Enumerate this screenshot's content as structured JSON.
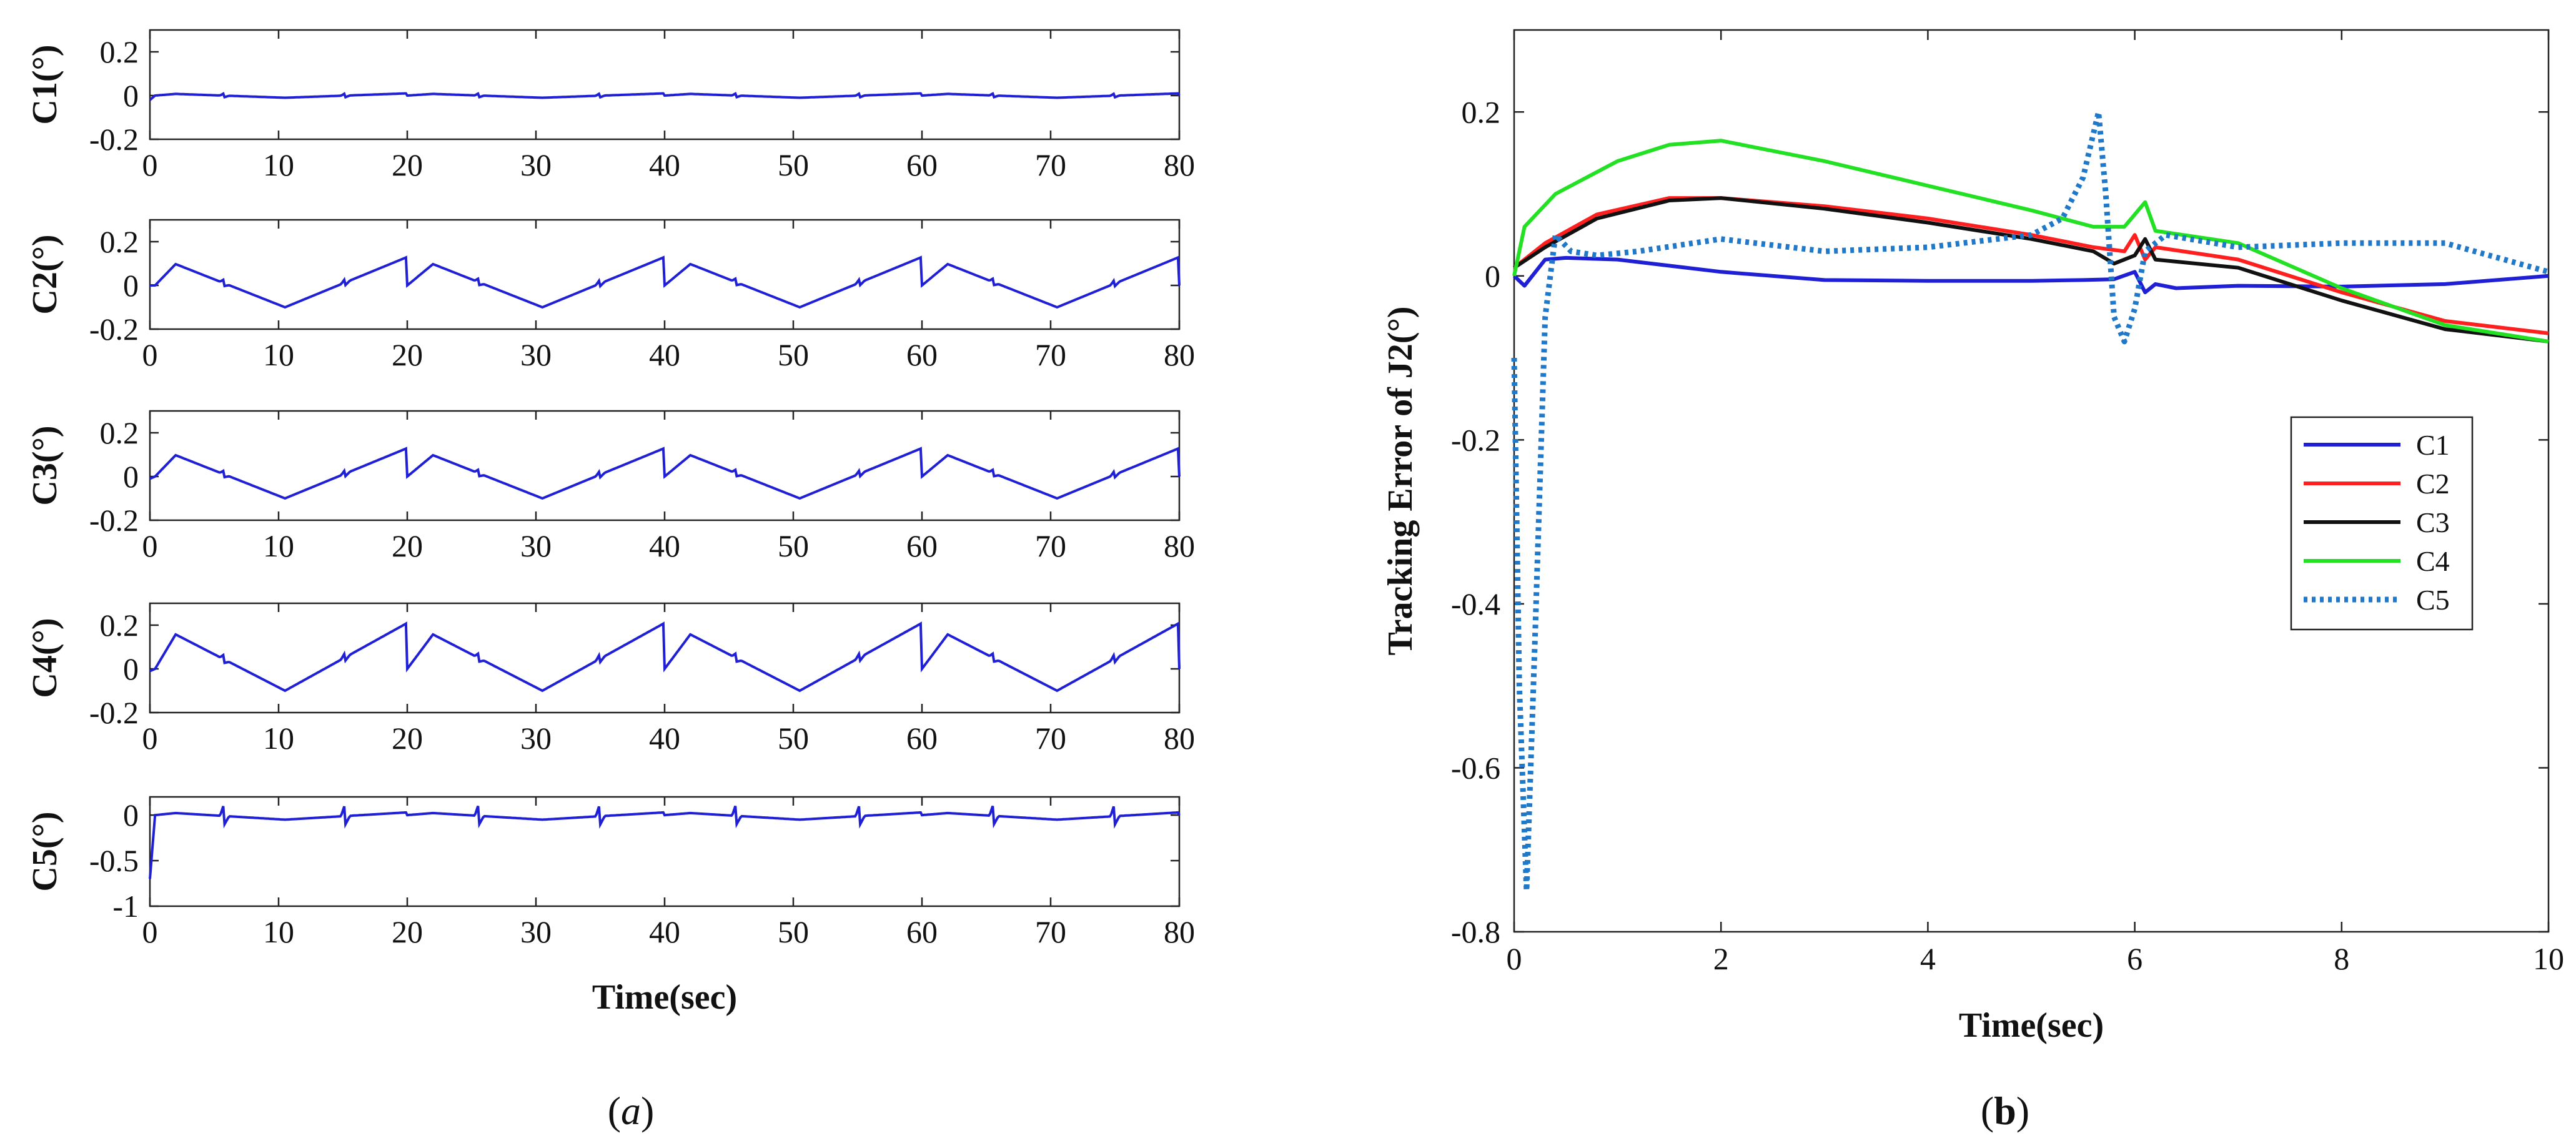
{
  "figure": {
    "caption_a_prefix": "(",
    "caption_a_letter": "a",
    "caption_a_suffix": ")",
    "caption_b_prefix": "(",
    "caption_b_letter": "b",
    "caption_b_suffix": ")"
  },
  "colors": {
    "trace": "#1f1fd6",
    "C1": "#1f1fd6",
    "C2": "#ff1f1f",
    "C3": "#111111",
    "C4": "#22e022",
    "C5": "#1f78c8"
  },
  "chart_data": [
    {
      "id": "a",
      "type": "line",
      "xlabel": "Time(sec)",
      "xlim": [
        0,
        80
      ],
      "xticks": [
        0,
        10,
        20,
        30,
        40,
        50,
        60,
        70,
        80
      ],
      "panels": [
        {
          "ylabel": "C1(°)",
          "ylim": [
            -0.2,
            0.3
          ],
          "yticks": [
            0.2,
            0,
            -0.2
          ],
          "ytick_labels": [
            "0.2",
            "0",
            "-0.2"
          ],
          "amp_pos": 0.01,
          "amp_neg": -0.01,
          "spike": 0.012,
          "start": -0.02
        },
        {
          "ylabel": "C2(°)",
          "ylim": [
            -0.2,
            0.3
          ],
          "yticks": [
            0.2,
            0,
            -0.2
          ],
          "ytick_labels": [
            "0.2",
            "0",
            "-0.2"
          ],
          "amp_pos": 0.13,
          "amp_neg": -0.1,
          "spike": 0.02,
          "start": 0.0
        },
        {
          "ylabel": "C3(°)",
          "ylim": [
            -0.2,
            0.3
          ],
          "yticks": [
            0.2,
            0,
            -0.2
          ],
          "ytick_labels": [
            "0.2",
            "0",
            "-0.2"
          ],
          "amp_pos": 0.13,
          "amp_neg": -0.1,
          "spike": 0.02,
          "start": -0.01
        },
        {
          "ylabel": "C4(°)",
          "ylim": [
            -0.2,
            0.3
          ],
          "yticks": [
            0.2,
            0,
            -0.2
          ],
          "ytick_labels": [
            "0.2",
            "0",
            "-0.2"
          ],
          "amp_pos": 0.21,
          "amp_neg": -0.1,
          "spike": 0.025,
          "start": -0.01
        },
        {
          "ylabel": "C5(°)",
          "ylim": [
            -1,
            0.2
          ],
          "yticks": [
            0,
            -0.5,
            -1
          ],
          "ytick_labels": [
            "0",
            "-0.5",
            "-1"
          ],
          "amp_pos": 0.03,
          "amp_neg": -0.05,
          "spike": 0.15,
          "start": -0.7
        }
      ]
    },
    {
      "id": "b",
      "type": "line",
      "xlabel": "Time(sec)",
      "ylabel": "Tracking Error of J2(°)",
      "xlim": [
        0,
        10
      ],
      "ylim": [
        -0.8,
        0.3
      ],
      "xticks": [
        0,
        2,
        4,
        6,
        8,
        10
      ],
      "xtick_labels": [
        "0",
        "2",
        "4",
        "6",
        "8",
        "10"
      ],
      "yticks": [
        0.2,
        0,
        -0.2,
        -0.4,
        -0.6,
        -0.8
      ],
      "ytick_labels": [
        "0.2",
        "0",
        "-0.2",
        "-0.4",
        "-0.6",
        "-0.8"
      ],
      "legend": [
        "C1",
        "C2",
        "C3",
        "C4",
        "C5"
      ],
      "series": [
        {
          "name": "C1",
          "style": "solid",
          "x": [
            0,
            0.1,
            0.3,
            0.5,
            1,
            2,
            3,
            4,
            5,
            5.5,
            5.8,
            6.0,
            6.1,
            6.2,
            6.4,
            7,
            8,
            9,
            10
          ],
          "y": [
            0,
            -0.012,
            0.02,
            0.022,
            0.02,
            0.005,
            -0.005,
            -0.006,
            -0.006,
            -0.005,
            -0.004,
            0.005,
            -0.02,
            -0.01,
            -0.015,
            -0.012,
            -0.013,
            -0.01,
            0.0
          ]
        },
        {
          "name": "C2",
          "style": "solid",
          "x": [
            0,
            0.3,
            0.8,
            1.5,
            2,
            3,
            4,
            5,
            5.6,
            5.9,
            6.0,
            6.1,
            6.2,
            7,
            8,
            9,
            10
          ],
          "y": [
            0.01,
            0.04,
            0.075,
            0.095,
            0.095,
            0.085,
            0.07,
            0.05,
            0.035,
            0.03,
            0.05,
            0.02,
            0.035,
            0.02,
            -0.02,
            -0.055,
            -0.07
          ]
        },
        {
          "name": "C3",
          "style": "solid",
          "x": [
            0,
            0.3,
            0.8,
            1.5,
            2,
            3,
            4,
            5,
            5.6,
            5.8,
            5.9,
            6.0,
            6.1,
            6.2,
            7,
            8,
            9,
            10
          ],
          "y": [
            0.01,
            0.035,
            0.07,
            0.092,
            0.095,
            0.082,
            0.065,
            0.045,
            0.03,
            0.015,
            0.02,
            0.025,
            0.045,
            0.02,
            0.01,
            -0.03,
            -0.065,
            -0.08
          ]
        },
        {
          "name": "C4",
          "style": "solid",
          "x": [
            0,
            0.1,
            0.4,
            1.0,
            1.5,
            2,
            3,
            4,
            5,
            5.6,
            5.9,
            6.1,
            6.2,
            7,
            8,
            9,
            10
          ],
          "y": [
            0.0,
            0.06,
            0.1,
            0.14,
            0.16,
            0.165,
            0.14,
            0.11,
            0.08,
            0.06,
            0.06,
            0.09,
            0.055,
            0.04,
            -0.015,
            -0.06,
            -0.08
          ]
        },
        {
          "name": "C5",
          "style": "dotted",
          "x": [
            0,
            0.05,
            0.12,
            0.2,
            0.3,
            0.4,
            0.55,
            0.8,
            1.2,
            2,
            3,
            4,
            5,
            5.3,
            5.5,
            5.65,
            5.72,
            5.8,
            5.9,
            6.0,
            6.1,
            6.3,
            7,
            8,
            9,
            10
          ],
          "y": [
            -0.1,
            -0.5,
            -0.75,
            -0.45,
            -0.05,
            0.05,
            0.03,
            0.025,
            0.03,
            0.045,
            0.03,
            0.035,
            0.05,
            0.07,
            0.12,
            0.2,
            0.1,
            -0.05,
            -0.08,
            -0.04,
            0.03,
            0.05,
            0.035,
            0.04,
            0.04,
            0.005
          ]
        }
      ]
    }
  ]
}
